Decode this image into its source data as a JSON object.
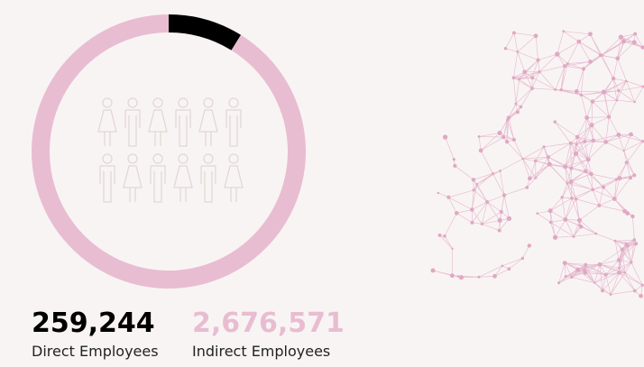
{
  "chart_data": {
    "type": "donut",
    "categories": [
      "Direct Employees",
      "Indirect Employees"
    ],
    "values": [
      259244,
      2676571
    ],
    "value_labels": [
      "259,244",
      "2,676,571"
    ],
    "colors": [
      "#000000",
      "#e8bdd1"
    ]
  }
}
